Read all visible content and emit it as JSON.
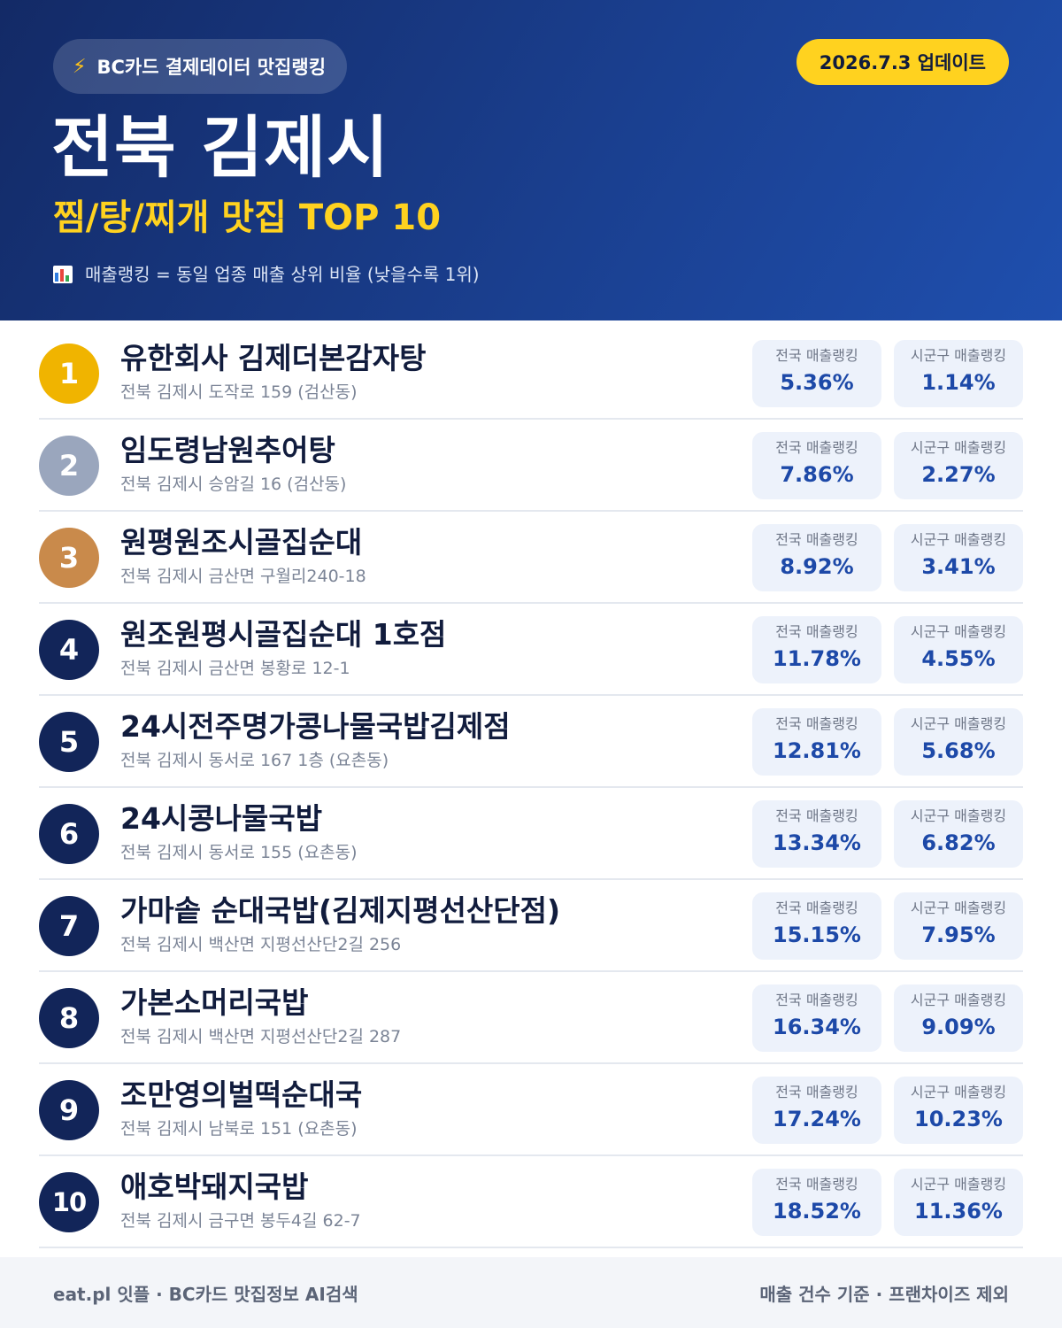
{
  "header": {
    "source_label": "BC카드 결제데이터 맛집랭킹",
    "source_icon": "lightning-icon",
    "date_label": "2026.7.3 업데이트",
    "title": "전북 김제시",
    "subtitle": "찜/탕/찌개 맛집 TOP 10",
    "note": "매출랭킹 = 동일 업종 매출 상위 비율 (낮을수록 1위)",
    "note_icon": "bar-chart-icon"
  },
  "colors": {
    "header_bg": "#1a3f8f",
    "accent_yellow": "#ffd21f",
    "rank_gold": "#f0b400",
    "rank_silver": "#9aa6bd",
    "rank_bronze": "#c98a4b",
    "rank_default": "#122559",
    "value_blue": "#1d49a8"
  },
  "stat_labels": {
    "national": "전국 매출랭킹",
    "local": "시군구 매출랭킹"
  },
  "restaurants": [
    {
      "rank": "1",
      "name": "유한회사 김제더본감자탕",
      "address": "전북 김제시 도작로 159 (검산동)",
      "national": "5.36%",
      "local": "1.14%"
    },
    {
      "rank": "2",
      "name": "임도령남원추어탕",
      "address": "전북 김제시 승암길 16 (검산동)",
      "national": "7.86%",
      "local": "2.27%"
    },
    {
      "rank": "3",
      "name": "원평원조시골집순대",
      "address": "전북 김제시 금산면 구월리240-18",
      "national": "8.92%",
      "local": "3.41%"
    },
    {
      "rank": "4",
      "name": "원조원평시골집순대 1호점",
      "address": "전북 김제시 금산면 봉황로 12-1",
      "national": "11.78%",
      "local": "4.55%"
    },
    {
      "rank": "5",
      "name": "24시전주명가콩나물국밥김제점",
      "address": "전북 김제시 동서로 167 1층 (요촌동)",
      "national": "12.81%",
      "local": "5.68%"
    },
    {
      "rank": "6",
      "name": "24시콩나물국밥",
      "address": "전북 김제시 동서로 155 (요촌동)",
      "national": "13.34%",
      "local": "6.82%"
    },
    {
      "rank": "7",
      "name": "가마솥 순대국밥(김제지평선산단점)",
      "address": "전북 김제시 백산면 지평선산단2길 256",
      "national": "15.15%",
      "local": "7.95%"
    },
    {
      "rank": "8",
      "name": "가본소머리국밥",
      "address": "전북 김제시 백산면 지평선산단2길 287",
      "national": "16.34%",
      "local": "9.09%"
    },
    {
      "rank": "9",
      "name": "조만영의벌떡순대국",
      "address": "전북 김제시 남북로 151 (요촌동)",
      "national": "17.24%",
      "local": "10.23%"
    },
    {
      "rank": "10",
      "name": "애호박돼지국밥",
      "address": "전북 김제시 금구면 봉두4길 62-7",
      "national": "18.52%",
      "local": "11.36%"
    }
  ],
  "footer": {
    "left": "eat.pl 잇플 · BC카드 맛집정보 AI검색",
    "right": "매출 건수 기준 · 프랜차이즈 제외"
  }
}
